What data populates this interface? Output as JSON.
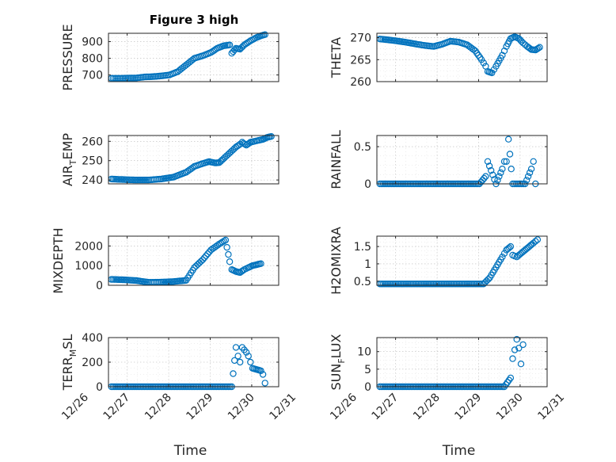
{
  "figure_title": "Figure 3 high",
  "chart_data": [
    {
      "type": "scatter",
      "ylabel": "PRESSURE",
      "xlabel": "",
      "ylim": [
        660,
        950
      ],
      "yticks": [
        700,
        800,
        900
      ],
      "ytick_labels": [
        "700",
        "800",
        "900"
      ],
      "x_ticks": [
        "12/26",
        "12/27",
        "12/28",
        "12/29",
        "12/30",
        "12/31"
      ],
      "marker_color": "#0072BD",
      "points": [
        [
          0,
          680
        ],
        [
          0.2,
          680
        ],
        [
          0.4,
          681
        ],
        [
          0.6,
          682
        ],
        [
          0.8,
          688
        ],
        [
          1.0,
          690
        ],
        [
          1.2,
          694
        ],
        [
          1.4,
          700
        ],
        [
          1.6,
          720
        ],
        [
          1.8,
          760
        ],
        [
          2.0,
          800
        ],
        [
          2.2,
          815
        ],
        [
          2.4,
          835
        ],
        [
          2.55,
          860
        ],
        [
          2.7,
          875
        ],
        [
          2.85,
          880
        ],
        [
          2.9,
          830
        ],
        [
          3.0,
          860
        ],
        [
          3.1,
          855
        ],
        [
          3.2,
          880
        ],
        [
          3.35,
          905
        ],
        [
          3.5,
          925
        ],
        [
          3.6,
          935
        ],
        [
          3.7,
          942
        ]
      ],
      "x_range": [
        -1.3,
        4.2
      ],
      "x_data_start": 0.15
    },
    {
      "type": "scatter",
      "ylabel": "THETA",
      "xlabel": "",
      "ylim": [
        260,
        271
      ],
      "yticks": [
        260,
        265,
        270
      ],
      "ytick_labels": [
        "260",
        "265",
        "270"
      ],
      "x_ticks": [
        "12/26",
        "12/27",
        "12/28",
        "12/29",
        "12/30",
        "12/31"
      ],
      "marker_color": "#0072BD",
      "points": [
        [
          0,
          269.7
        ],
        [
          0.3,
          269.4
        ],
        [
          0.6,
          269.0
        ],
        [
          0.9,
          268.5
        ],
        [
          1.1,
          268.2
        ],
        [
          1.3,
          268.0
        ],
        [
          1.5,
          268.5
        ],
        [
          1.7,
          269.2
        ],
        [
          1.9,
          269.0
        ],
        [
          2.1,
          268.4
        ],
        [
          2.3,
          267.0
        ],
        [
          2.45,
          265.0
        ],
        [
          2.55,
          263.5
        ],
        [
          2.6,
          262.3
        ],
        [
          2.7,
          262.0
        ],
        [
          2.8,
          263.5
        ],
        [
          2.95,
          266.0
        ],
        [
          3.05,
          268.0
        ],
        [
          3.15,
          269.8
        ],
        [
          3.25,
          270.2
        ],
        [
          3.35,
          269.8
        ],
        [
          3.45,
          268.8
        ],
        [
          3.55,
          268.0
        ],
        [
          3.65,
          267.3
        ],
        [
          3.75,
          267.2
        ],
        [
          3.85,
          267.8
        ]
      ],
      "x_range": [
        -1.3,
        4.2
      ],
      "x_data_start": 0.15
    },
    {
      "type": "scatter",
      "ylabel": "AIR",
      "ylabel_sub": "T",
      "ylabel_tail": "EMP",
      "xlabel": "",
      "ylim": [
        238,
        263
      ],
      "yticks": [
        240,
        250,
        260
      ],
      "ytick_labels": [
        "240",
        "250",
        "260"
      ],
      "x_ticks": [
        "12/26",
        "12/27",
        "12/28",
        "12/29",
        "12/30",
        "12/31"
      ],
      "marker_color": "#0072BD",
      "points": [
        [
          0,
          240.5
        ],
        [
          0.3,
          240.2
        ],
        [
          0.6,
          240.0
        ],
        [
          0.9,
          240.0
        ],
        [
          1.2,
          240.5
        ],
        [
          1.5,
          241.5
        ],
        [
          1.8,
          244.0
        ],
        [
          2.0,
          247.0
        ],
        [
          2.2,
          248.5
        ],
        [
          2.35,
          249.5
        ],
        [
          2.5,
          248.8
        ],
        [
          2.6,
          249.0
        ],
        [
          2.7,
          251.0
        ],
        [
          2.85,
          254.0
        ],
        [
          3.0,
          257.0
        ],
        [
          3.1,
          258.5
        ],
        [
          3.15,
          259.5
        ],
        [
          3.25,
          258.0
        ],
        [
          3.35,
          259.5
        ],
        [
          3.45,
          260.0
        ],
        [
          3.55,
          260.5
        ],
        [
          3.65,
          261.0
        ],
        [
          3.75,
          262.0
        ],
        [
          3.85,
          262.5
        ]
      ],
      "x_range": [
        -1.3,
        4.2
      ],
      "x_data_start": 0.15
    },
    {
      "type": "scatter",
      "ylabel": "RAINFALL",
      "xlabel": "",
      "ylim": [
        0,
        0.65
      ],
      "yticks": [
        0,
        0.5
      ],
      "ytick_labels": [
        "0",
        "0.5"
      ],
      "x_ticks": [
        "12/26",
        "12/27",
        "12/28",
        "12/29",
        "12/30",
        "12/31"
      ],
      "marker_color": "#0072BD",
      "points": [
        [
          0,
          0
        ],
        [
          2.4,
          0
        ],
        [
          2.55,
          0.1
        ],
        [
          2.6,
          0.3
        ],
        [
          2.8,
          0
        ],
        [
          2.95,
          0.2
        ],
        [
          3.0,
          0.3
        ],
        [
          3.05,
          0.3
        ],
        [
          3.1,
          0.6
        ],
        [
          3.2,
          0
        ],
        [
          3.5,
          0
        ],
        [
          3.65,
          0.2
        ],
        [
          3.7,
          0.3
        ],
        [
          3.75,
          0
        ]
      ],
      "x_range": [
        -1.3,
        4.2
      ],
      "x_data_start": 0.15
    },
    {
      "type": "scatter",
      "ylabel": "MIXDEPTH",
      "xlabel": "",
      "ylim": [
        0,
        2500
      ],
      "yticks": [
        0,
        1000,
        2000
      ],
      "ytick_labels": [
        "0",
        "1000",
        "2000"
      ],
      "x_ticks": [
        "12/26",
        "12/27",
        "12/28",
        "12/29",
        "12/30",
        "12/31"
      ],
      "marker_color": "#0072BD",
      "points": [
        [
          0,
          300
        ],
        [
          0.3,
          280
        ],
        [
          0.6,
          240
        ],
        [
          0.9,
          150
        ],
        [
          1.2,
          160
        ],
        [
          1.5,
          190
        ],
        [
          1.8,
          250
        ],
        [
          2.0,
          900
        ],
        [
          2.2,
          1300
        ],
        [
          2.4,
          1800
        ],
        [
          2.6,
          2100
        ],
        [
          2.75,
          2300
        ],
        [
          2.85,
          1200
        ],
        [
          2.9,
          800
        ],
        [
          3.0,
          700
        ],
        [
          3.1,
          650
        ],
        [
          3.2,
          800
        ],
        [
          3.3,
          900
        ],
        [
          3.4,
          1000
        ],
        [
          3.5,
          1050
        ],
        [
          3.6,
          1100
        ]
      ],
      "x_range": [
        -1.3,
        4.2
      ],
      "x_data_start": 0.15
    },
    {
      "type": "scatter",
      "ylabel": "H2OMIXRA",
      "xlabel": "",
      "ylim": [
        0.38,
        1.8
      ],
      "yticks": [
        0.5,
        1,
        1.5
      ],
      "ytick_labels": [
        "0.5",
        "1",
        "1.5"
      ],
      "x_ticks": [
        "12/26",
        "12/27",
        "12/28",
        "12/29",
        "12/30",
        "12/31"
      ],
      "marker_color": "#0072BD",
      "points": [
        [
          0,
          0.42
        ],
        [
          2.5,
          0.42
        ],
        [
          2.65,
          0.6
        ],
        [
          2.8,
          0.9
        ],
        [
          2.95,
          1.2
        ],
        [
          3.05,
          1.4
        ],
        [
          3.15,
          1.5
        ],
        [
          3.2,
          1.25
        ],
        [
          3.3,
          1.2
        ],
        [
          3.4,
          1.3
        ],
        [
          3.5,
          1.4
        ],
        [
          3.6,
          1.5
        ],
        [
          3.7,
          1.6
        ],
        [
          3.8,
          1.7
        ]
      ],
      "x_range": [
        -1.3,
        4.2
      ],
      "x_data_start": 0.15
    },
    {
      "type": "scatter",
      "ylabel": "TERR",
      "ylabel_sub": "M",
      "ylabel_tail": "SL",
      "xlabel": "Time",
      "ylim": [
        0,
        400
      ],
      "yticks": [
        0,
        200,
        400
      ],
      "ytick_labels": [
        "0",
        "200",
        "400"
      ],
      "x_ticks": [
        "12/26",
        "12/27",
        "12/28",
        "12/29",
        "12/30",
        "12/31"
      ],
      "marker_color": "#0072BD",
      "points": [
        [
          0,
          0
        ],
        [
          1.0,
          0
        ],
        [
          2.0,
          0
        ],
        [
          2.9,
          0
        ],
        [
          3.0,
          320
        ],
        [
          3.05,
          250
        ],
        [
          3.1,
          200
        ],
        [
          3.15,
          320
        ],
        [
          3.2,
          300
        ],
        [
          3.25,
          280
        ],
        [
          3.3,
          250
        ],
        [
          3.35,
          200
        ],
        [
          3.4,
          150
        ],
        [
          3.5,
          140
        ],
        [
          3.6,
          130
        ],
        [
          3.65,
          100
        ],
        [
          3.7,
          30
        ]
      ],
      "x_range": [
        -1.3,
        4.2
      ],
      "x_data_start": 0.15
    },
    {
      "type": "scatter",
      "ylabel": "SUN",
      "ylabel_sub": "F",
      "ylabel_tail": "LUX",
      "xlabel": "Time",
      "ylim": [
        0,
        14
      ],
      "yticks": [
        0,
        5,
        10
      ],
      "ytick_labels": [
        "0",
        "5",
        "10"
      ],
      "x_ticks": [
        "12/26",
        "12/27",
        "12/28",
        "12/29",
        "12/30",
        "12/31"
      ],
      "marker_color": "#0072BD",
      "points": [
        [
          0,
          0
        ],
        [
          1.0,
          0
        ],
        [
          2.0,
          0
        ],
        [
          3.0,
          0
        ],
        [
          3.15,
          2.5
        ],
        [
          3.2,
          8
        ],
        [
          3.25,
          10.5
        ],
        [
          3.3,
          13.5
        ],
        [
          3.35,
          11
        ],
        [
          3.4,
          6.5
        ],
        [
          3.45,
          12
        ]
      ],
      "x_range": [
        -1.3,
        4.2
      ],
      "x_data_start": 0.15
    }
  ]
}
